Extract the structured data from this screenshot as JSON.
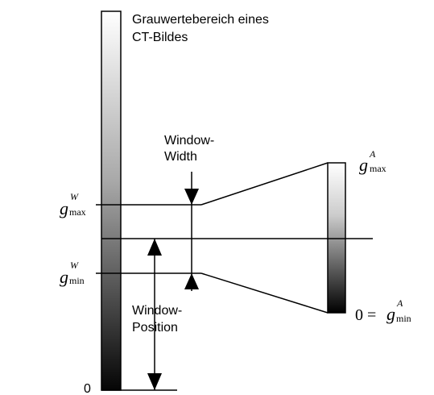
{
  "title_line1": "Grauwertebereich eines",
  "title_line2": "CT-Bildes",
  "window_width_line1": "Window-",
  "window_width_line2": "Width",
  "window_position_line1": "Window-",
  "window_position_line2": "Position",
  "zero_label": "0",
  "g_max_w": {
    "base": "g",
    "sup": "W",
    "sub": "max"
  },
  "g_min_w": {
    "base": "g",
    "sup": "W",
    "sub": "min"
  },
  "g_max_a": {
    "base": "g",
    "sup": "A",
    "sub": "max"
  },
  "g_min_a": {
    "prefix": "0 = ",
    "base": "g",
    "sup": "A",
    "sub": "min"
  },
  "colors": {
    "ink": "#000000",
    "gray_light": "#ffffff",
    "gray_dark": "#000000"
  }
}
